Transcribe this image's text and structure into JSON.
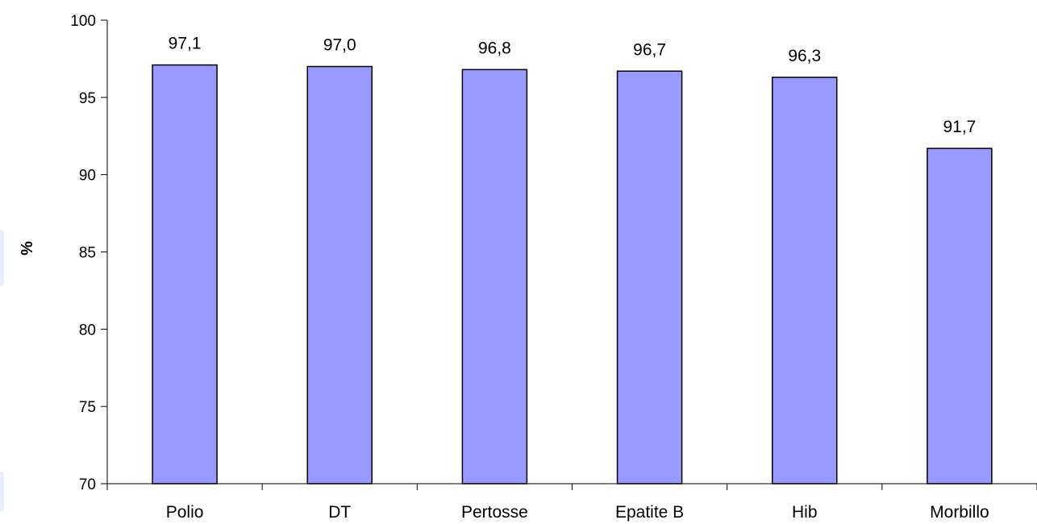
{
  "chart_data": {
    "type": "bar",
    "title": "",
    "xlabel": "",
    "ylabel": "%",
    "ylim": [
      70,
      100
    ],
    "yticks": [
      70,
      75,
      80,
      85,
      90,
      95,
      100
    ],
    "grid": false,
    "legend": "none",
    "categories": [
      "Polio",
      "DT",
      "Pertosse",
      "Epatite B",
      "Hib",
      "Morbillo"
    ],
    "values": [
      97.1,
      97.0,
      96.8,
      96.7,
      96.3,
      91.7
    ],
    "data_labels": [
      "97,1",
      "97,0",
      "96,8",
      "96,7",
      "96,3",
      "91,7"
    ],
    "colors": {
      "bar_fill": "#9999ff",
      "bar_stroke": "#000000",
      "axis": "#000000"
    }
  }
}
